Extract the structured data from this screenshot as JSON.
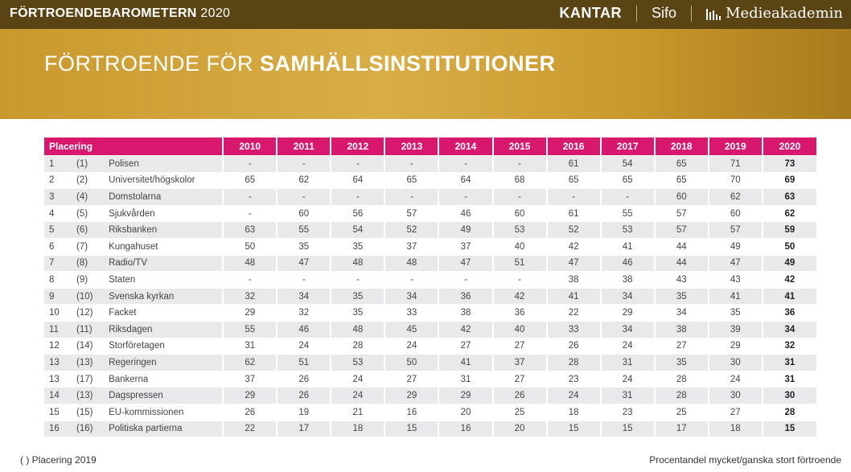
{
  "header": {
    "brand_bold": "FÖRTROENDEBAROMETERN",
    "brand_year": "2020",
    "kantar": "KANTAR",
    "sifo": "Sifo",
    "medieakademin": "Medieakademin"
  },
  "banner": {
    "title_light": "FÖRTROENDE FÖR",
    "title_bold": "SAMHÄLLSINSTITUTIONER"
  },
  "table": {
    "rank_header": "Placering",
    "years": [
      "2010",
      "2011",
      "2012",
      "2013",
      "2014",
      "2015",
      "2016",
      "2017",
      "2018",
      "2019",
      "2020"
    ],
    "rows": [
      {
        "rank": "1",
        "prev": "(1)",
        "name": "Polisen",
        "vals": [
          "-",
          "-",
          "-",
          "-",
          "-",
          "-",
          "61",
          "54",
          "65",
          "71",
          "73"
        ]
      },
      {
        "rank": "2",
        "prev": "(2)",
        "name": "Universitet/högskolor",
        "vals": [
          "65",
          "62",
          "64",
          "65",
          "64",
          "68",
          "65",
          "65",
          "65",
          "70",
          "69"
        ]
      },
      {
        "rank": "3",
        "prev": "(4)",
        "name": "Domstolarna",
        "vals": [
          "-",
          "-",
          "-",
          "-",
          "-",
          "-",
          "-",
          "-",
          "60",
          "62",
          "63"
        ]
      },
      {
        "rank": "4",
        "prev": "(5)",
        "name": "Sjukvården",
        "vals": [
          "-",
          "60",
          "56",
          "57",
          "46",
          "60",
          "61",
          "55",
          "57",
          "60",
          "62"
        ]
      },
      {
        "rank": "5",
        "prev": "(6)",
        "name": "Riksbanken",
        "vals": [
          "63",
          "55",
          "54",
          "52",
          "49",
          "53",
          "52",
          "53",
          "57",
          "57",
          "59"
        ]
      },
      {
        "rank": "6",
        "prev": "(7)",
        "name": "Kungahuset",
        "vals": [
          "50",
          "35",
          "35",
          "37",
          "37",
          "40",
          "42",
          "41",
          "44",
          "49",
          "50"
        ]
      },
      {
        "rank": "7",
        "prev": "(8)",
        "name": "Radio/TV",
        "vals": [
          "48",
          "47",
          "48",
          "48",
          "47",
          "51",
          "47",
          "46",
          "44",
          "47",
          "49"
        ]
      },
      {
        "rank": "8",
        "prev": "(9)",
        "name": "Staten",
        "vals": [
          "-",
          "-",
          "-",
          "-",
          "-",
          "-",
          "38",
          "38",
          "43",
          "43",
          "42"
        ]
      },
      {
        "rank": "9",
        "prev": "(10)",
        "name": "Svenska kyrkan",
        "vals": [
          "32",
          "34",
          "35",
          "34",
          "36",
          "42",
          "41",
          "34",
          "35",
          "41",
          "41"
        ]
      },
      {
        "rank": "10",
        "prev": "(12)",
        "name": "Facket",
        "vals": [
          "29",
          "32",
          "35",
          "33",
          "38",
          "36",
          "22",
          "29",
          "34",
          "35",
          "36"
        ]
      },
      {
        "rank": "11",
        "prev": "(11)",
        "name": "Riksdagen",
        "vals": [
          "55",
          "46",
          "48",
          "45",
          "42",
          "40",
          "33",
          "34",
          "38",
          "39",
          "34"
        ]
      },
      {
        "rank": "12",
        "prev": "(14)",
        "name": "Storföretagen",
        "vals": [
          "31",
          "24",
          "28",
          "24",
          "27",
          "27",
          "26",
          "24",
          "27",
          "29",
          "32"
        ]
      },
      {
        "rank": "13",
        "prev": "(13)",
        "name": "Regeringen",
        "vals": [
          "62",
          "51",
          "53",
          "50",
          "41",
          "37",
          "28",
          "31",
          "35",
          "30",
          "31"
        ]
      },
      {
        "rank": "13",
        "prev": "(17)",
        "name": "Bankerna",
        "vals": [
          "37",
          "26",
          "24",
          "27",
          "31",
          "27",
          "23",
          "24",
          "28",
          "24",
          "31"
        ]
      },
      {
        "rank": "14",
        "prev": "(13)",
        "name": "Dagspressen",
        "vals": [
          "29",
          "26",
          "24",
          "29",
          "29",
          "26",
          "24",
          "31",
          "28",
          "30",
          "30"
        ]
      },
      {
        "rank": "15",
        "prev": "(15)",
        "name": "EU-kommissionen",
        "vals": [
          "26",
          "19",
          "21",
          "16",
          "20",
          "25",
          "18",
          "23",
          "25",
          "27",
          "28"
        ]
      },
      {
        "rank": "16",
        "prev": "(16)",
        "name": "Politiska partierna",
        "vals": [
          "22",
          "17",
          "18",
          "15",
          "16",
          "20",
          "15",
          "15",
          "17",
          "18",
          "15"
        ]
      }
    ]
  },
  "footer": {
    "left": "( ) Placering 2019",
    "right": "Procentandel mycket/ganska stort förtroende"
  }
}
